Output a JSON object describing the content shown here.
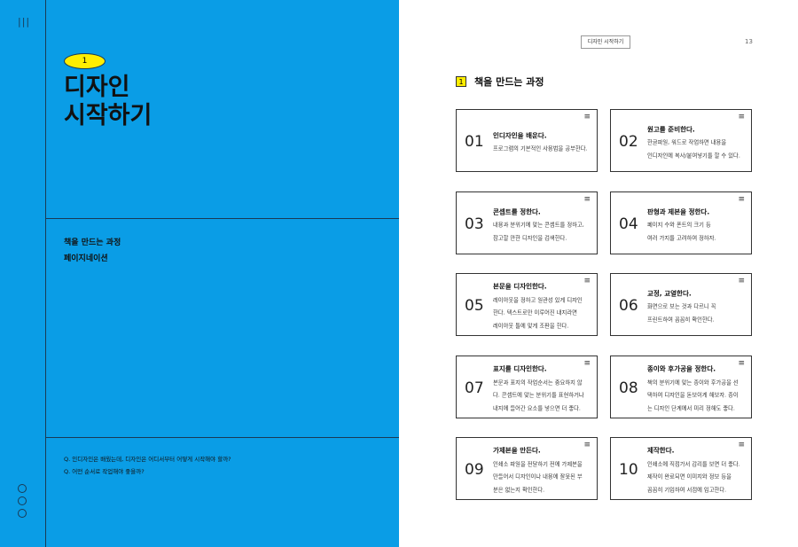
{
  "left": {
    "chapter_number": "1",
    "title_lines": [
      "디자인",
      "시작하기"
    ],
    "toc": [
      "책을 만드는 과정",
      "페이지네이션"
    ],
    "questions": [
      "Q.  인디자인은 배웠는데, 디자인은 어디서부터 어떻게 시작해야 할까?",
      "Q.  어떤 순서로 작업해야 좋을까?"
    ]
  },
  "right": {
    "header_label": "디자인 시작하기",
    "page_number": "13",
    "section": {
      "number": "1",
      "title": "책을 만드는 과정"
    },
    "cards": [
      {
        "number": "01",
        "title": "인디자인을 배운다.",
        "lines": [
          "프로그램의 기본적인 사용법을 공부한다."
        ]
      },
      {
        "number": "02",
        "title": "원고를 준비한다.",
        "lines": [
          "한글파일, 워드로 작업하면 내용을",
          "인디자인에 복사/붙여넣기를 할 수 있다."
        ]
      },
      {
        "number": "03",
        "title": "콘셉트를 정한다.",
        "lines": [
          "내용과 분위기에 맞는 콘셉트를 정하고,",
          "참고할 만한 디자인을 검색한다."
        ]
      },
      {
        "number": "04",
        "title": "판형과 제본을 정한다.",
        "lines": [
          "페이지 수와 폰트의 크기 등",
          "여러 가지를 고려하여 정하자."
        ]
      },
      {
        "number": "05",
        "title": "본문을 디자인한다.",
        "lines": [
          "레이아웃을 정하고 일관성 있게 디자인",
          "한다. 텍스트로만 이루어진 내지라면",
          "레이아웃 틀에 맞게 조판을 한다."
        ]
      },
      {
        "number": "06",
        "title": "교정, 교열한다.",
        "lines": [
          "화면으로 보는 것과 다르니 꼭",
          "프린트하여 꼼꼼히 확인한다."
        ]
      },
      {
        "number": "07",
        "title": "표지를 디자인한다.",
        "lines": [
          "본문과 표지의 작업순서는 중요하지 않",
          "다. 콘셉트에 맞는 분위기를 표현하거나",
          "내지에 들어간 요소를 넣으면 더 좋다."
        ]
      },
      {
        "number": "08",
        "title": "종이와 후가공을 정한다.",
        "lines": [
          "책의 분위기에 맞는 종이와 후가공을 선",
          "택하여 디자인을 돋보이게 해보자. 종이",
          "는 디자인 단계에서 미리 정해도 좋다."
        ]
      },
      {
        "number": "09",
        "title": "가제본을 만든다.",
        "lines": [
          "인쇄소 파일을 전달하기 전에 가제본을",
          "만들어서 디자인이나 내용에 잘못된 부",
          "분은 없는지 확인한다."
        ]
      },
      {
        "number": "10",
        "title": "제작한다.",
        "lines": [
          "인쇄소에 직접가서 감리를 보면 더 좋다.",
          "제작이 완료되면 이미지와 정보 등을",
          "꼼꼼히 기입하여 서점에 입고한다."
        ]
      }
    ]
  }
}
